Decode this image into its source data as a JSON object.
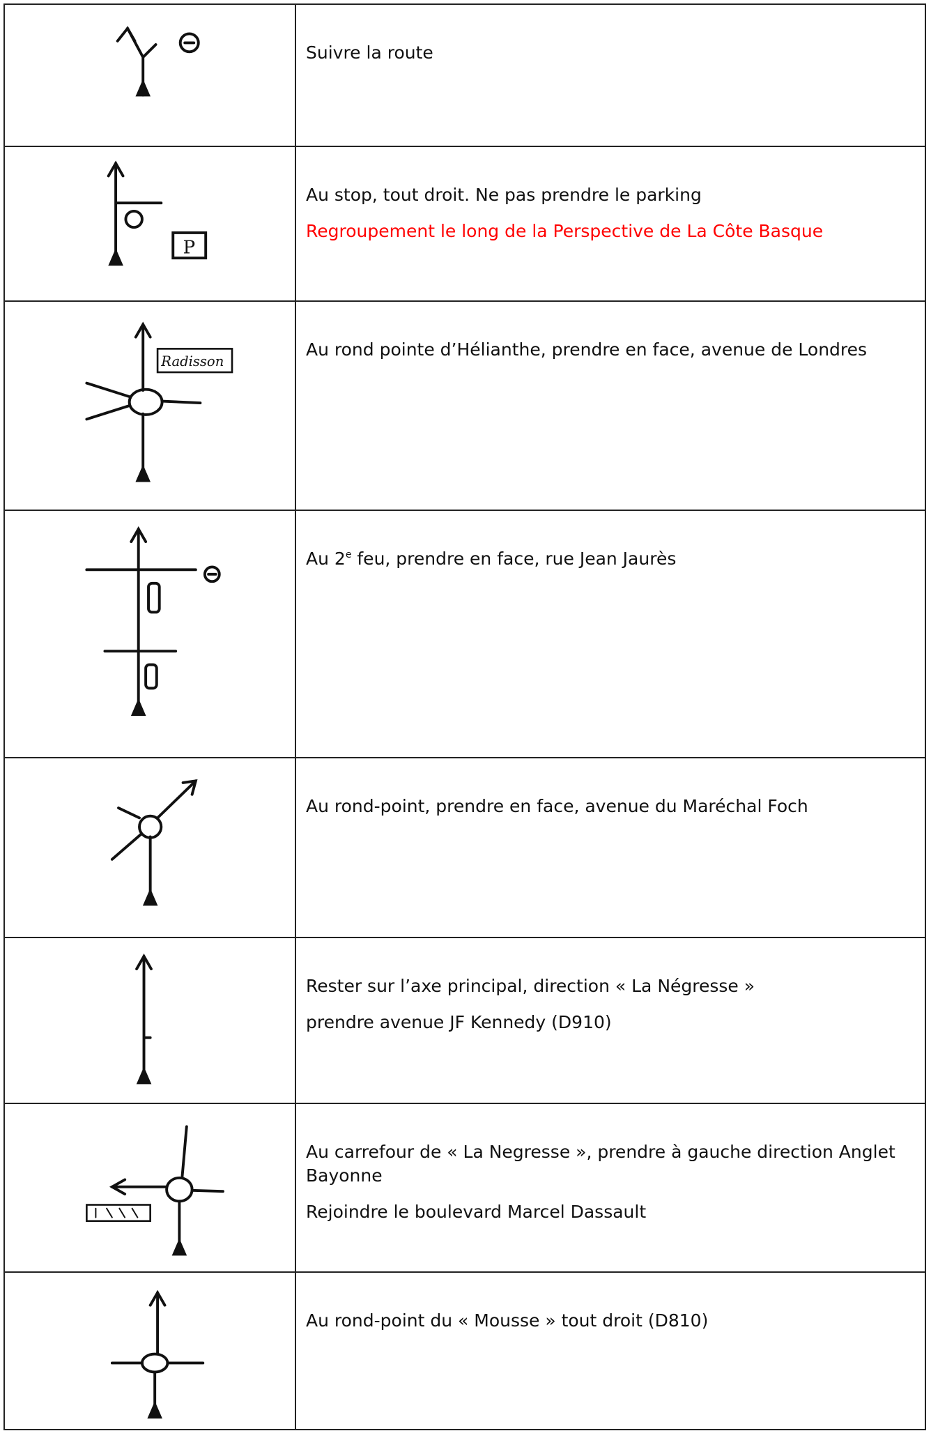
{
  "table": {
    "rows": [
      {
        "lines": [
          {
            "parts": [
              {
                "text": "Suivre la route"
              }
            ]
          }
        ]
      },
      {
        "sign": "P",
        "lines": [
          {
            "parts": [
              {
                "text": "Au stop, tout droit. Ne pas prendre le parking"
              }
            ]
          },
          {
            "color": "#ff0000",
            "parts": [
              {
                "text": "Regroupement le long de la Perspective de La Côte Basque"
              }
            ]
          }
        ]
      },
      {
        "sign": "Radisson",
        "lines": [
          {
            "parts": [
              {
                "text": "Au rond pointe d’Hélianthe, prendre en face, avenue de Londres"
              }
            ]
          }
        ]
      },
      {
        "lines": [
          {
            "parts": [
              {
                "text": "Au 2"
              },
              {
                "text": "e",
                "sup": true
              },
              {
                "text": " feu, prendre en face, rue Jean Jaurès"
              }
            ]
          }
        ]
      },
      {
        "lines": [
          {
            "parts": [
              {
                "text": "Au rond-point, prendre en face, avenue du Maréchal Foch"
              }
            ]
          }
        ]
      },
      {
        "lines": [
          {
            "parts": [
              {
                "text": "Rester sur l’axe principal, direction « La Négresse »"
              }
            ]
          },
          {
            "parts": [
              {
                "text": " prendre avenue JF Kennedy (D910)"
              }
            ]
          }
        ]
      },
      {
        "lines": [
          {
            "parts": [
              {
                "text": "Au carrefour de « La Negresse », prendre à gauche direction Anglet Bayonne"
              }
            ]
          },
          {
            "parts": [
              {
                "text": "Rejoindre le boulevard Marcel Dassault"
              }
            ]
          }
        ]
      },
      {
        "lines": [
          {
            "parts": [
              {
                "text": "Au rond-point du « Mousse » tout droit (D810)"
              }
            ]
          }
        ]
      }
    ]
  }
}
